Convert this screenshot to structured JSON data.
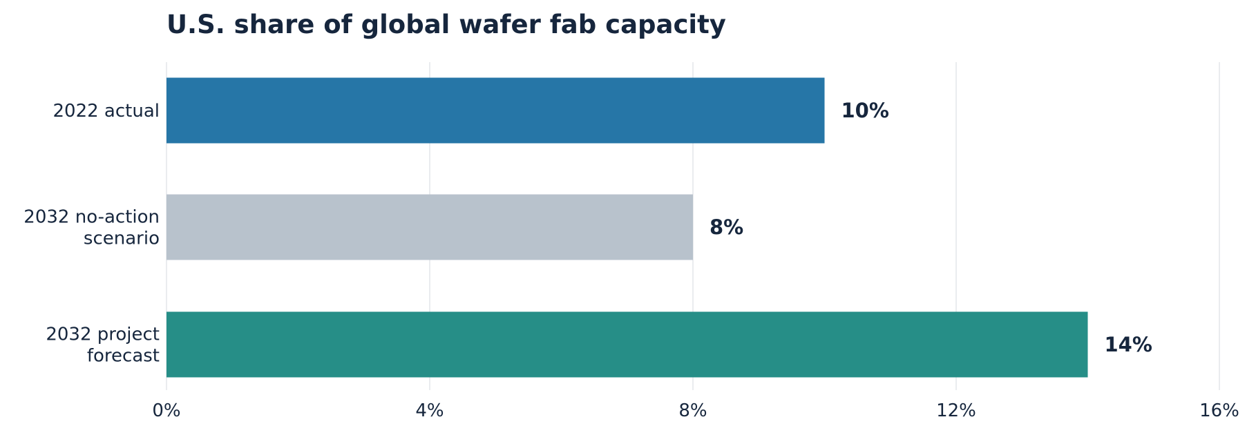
{
  "chart_data": {
    "type": "bar",
    "orientation": "horizontal",
    "title": "U.S. share of global wafer fab capacity",
    "xlabel": "",
    "ylabel": "",
    "categories": [
      {
        "lines": [
          "2022 actual"
        ],
        "value": 10,
        "label": "10%",
        "color": "#2676a7"
      },
      {
        "lines": [
          "2032 no-action",
          "scenario"
        ],
        "value": 8,
        "label": "8%",
        "color": "#b8c2cc"
      },
      {
        "lines": [
          "2032 project",
          "forecast"
        ],
        "value": 14,
        "label": "14%",
        "color": "#268e87"
      }
    ],
    "xlim": [
      0,
      16
    ],
    "xticks": [
      {
        "value": 0,
        "label": "0%"
      },
      {
        "value": 4,
        "label": "4%"
      },
      {
        "value": 8,
        "label": "8%"
      },
      {
        "value": 12,
        "label": "12%"
      },
      {
        "value": 16,
        "label": "16%"
      }
    ],
    "grid": "vertical",
    "legend": "none"
  }
}
